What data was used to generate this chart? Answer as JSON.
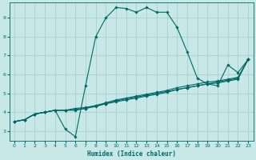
{
  "title": "",
  "xlabel": "Humidex (Indice chaleur)",
  "bg_color": "#c8e8e8",
  "grid_color": "#a8d0d0",
  "line_color": "#006868",
  "xlim": [
    -0.5,
    23.5
  ],
  "ylim": [
    2.5,
    9.8
  ],
  "xticks": [
    0,
    1,
    2,
    3,
    4,
    5,
    6,
    7,
    8,
    9,
    10,
    11,
    12,
    13,
    14,
    15,
    16,
    17,
    18,
    19,
    20,
    21,
    22,
    23
  ],
  "yticks": [
    3,
    4,
    5,
    6,
    7,
    8,
    9
  ],
  "line1_y": [
    3.5,
    3.6,
    3.9,
    4.0,
    4.1,
    3.1,
    2.7,
    5.4,
    8.0,
    9.0,
    9.55,
    9.5,
    9.3,
    9.55,
    9.3,
    9.3,
    8.5,
    7.2,
    5.8,
    5.5,
    5.4,
    6.5,
    6.1,
    6.8
  ],
  "line2_y": [
    3.5,
    3.6,
    3.9,
    4.0,
    4.1,
    4.1,
    4.1,
    4.2,
    4.35,
    4.5,
    4.65,
    4.75,
    4.85,
    4.95,
    5.05,
    5.15,
    5.3,
    5.4,
    5.5,
    5.6,
    5.65,
    5.75,
    5.85,
    6.8
  ],
  "line3_y": [
    3.5,
    3.6,
    3.9,
    4.0,
    4.1,
    4.1,
    4.15,
    4.2,
    4.3,
    4.45,
    4.55,
    4.65,
    4.75,
    4.85,
    4.95,
    5.05,
    5.2,
    5.3,
    5.4,
    5.5,
    5.55,
    5.65,
    5.75,
    6.8
  ],
  "line4_y": [
    3.5,
    3.6,
    3.9,
    4.0,
    4.1,
    4.1,
    4.2,
    4.25,
    4.35,
    4.45,
    4.6,
    4.7,
    4.8,
    4.9,
    5.0,
    5.1,
    5.2,
    5.3,
    5.4,
    5.5,
    5.6,
    5.7,
    5.8,
    6.8
  ]
}
